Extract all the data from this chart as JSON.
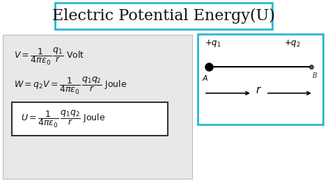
{
  "title": "Electric Potential Energy(U)",
  "title_fontsize": 16,
  "title_box_color": "#29b6d4",
  "bg_color": "#ffffff",
  "left_panel_color": "#e8e8e8",
  "text_color": "#111111",
  "diagram_box_color": "#29b6d4",
  "formula3_box_color": "#333333"
}
